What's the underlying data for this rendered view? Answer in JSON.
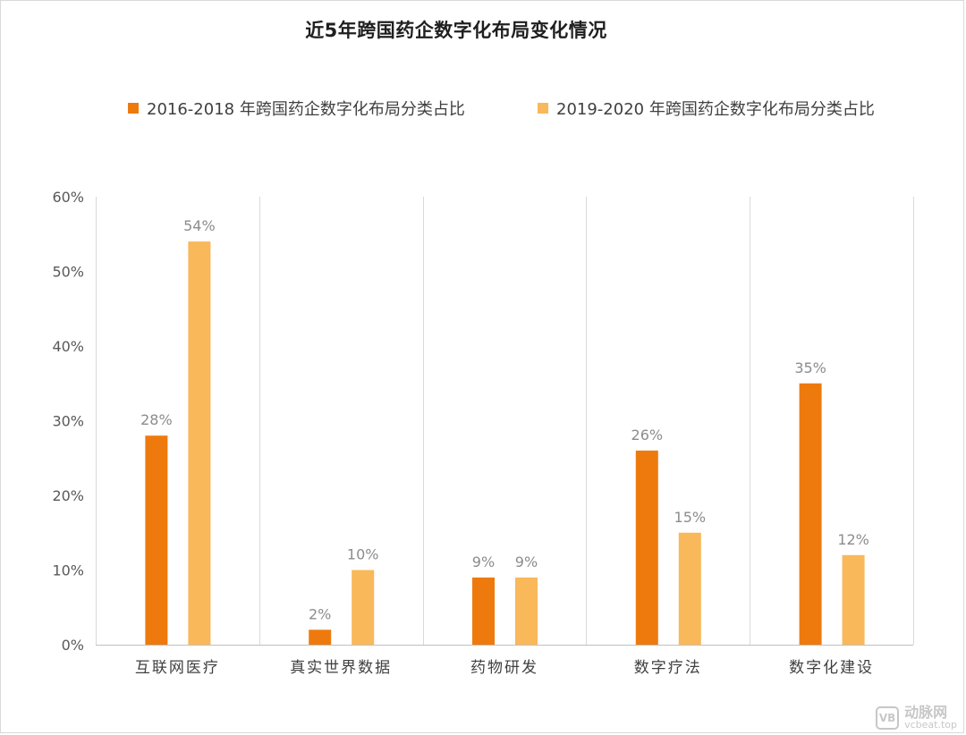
{
  "chart_data": {
    "type": "bar",
    "title": "近5年跨国药企数字化布局变化情况",
    "categories": [
      "互联网医疗",
      "真实世界数据",
      "药物研发",
      "数字疗法",
      "数字化建设"
    ],
    "series": [
      {
        "name": "2016-2018 年跨国药企数字化布局分类占比",
        "values": [
          28,
          2,
          9,
          26,
          35
        ],
        "color": "#ee7a0e"
      },
      {
        "name": "2019-2020 年跨国药企数字化布局分类占比",
        "values": [
          54,
          10,
          9,
          15,
          12
        ],
        "color": "#f9b85a"
      }
    ],
    "data_labels": [
      [
        "28%",
        "2%",
        "9%",
        "26%",
        "35%"
      ],
      [
        "54%",
        "10%",
        "9%",
        "15%",
        "12%"
      ]
    ],
    "ylim": [
      0,
      60
    ],
    "yticks": [
      0,
      10,
      20,
      30,
      40,
      50,
      60
    ],
    "ytick_labels": [
      "0%",
      "10%",
      "20%",
      "30%",
      "40%",
      "50%",
      "60%"
    ],
    "xlabel": "",
    "ylabel": "",
    "legend": "top",
    "grid": "vertical category separators"
  },
  "watermark": {
    "brand": "动脉网",
    "url": "vcbeat.top",
    "logo_text": "VB"
  }
}
